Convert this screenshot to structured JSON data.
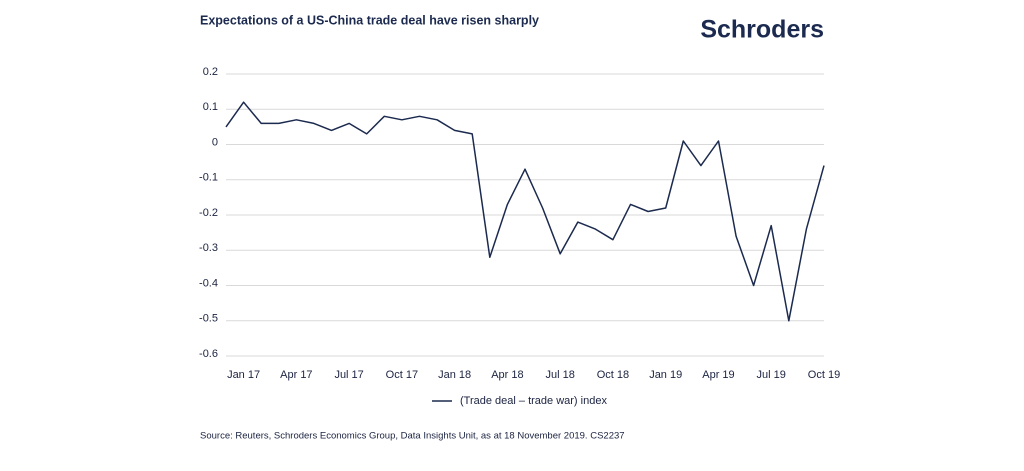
{
  "chart_data": {
    "type": "line",
    "title": "Expectations of a US-China trade deal have risen sharply",
    "brand": "Schroders",
    "source": "Source: Reuters, Schroders Economics Group, Data Insights Unit, as at 18 November 2019. CS2237",
    "categories": [
      null,
      "Jan 17",
      null,
      null,
      "Apr 17",
      null,
      null,
      "Jul 17",
      null,
      null,
      "Oct 17",
      null,
      null,
      "Jan 18",
      null,
      null,
      "Apr 18",
      null,
      null,
      "Jul 18",
      null,
      null,
      "Oct 18",
      null,
      null,
      "Jan 19",
      null,
      null,
      "Apr 19",
      null,
      null,
      "Jul 19",
      null,
      null,
      "Oct 19"
    ],
    "series": [
      {
        "name": "(Trade deal – trade war) index",
        "color": "#1b2a4e",
        "values": [
          0.05,
          0.12,
          0.06,
          0.06,
          0.07,
          0.06,
          0.04,
          0.06,
          0.03,
          0.08,
          0.07,
          0.08,
          0.07,
          0.04,
          0.03,
          -0.32,
          -0.17,
          -0.07,
          -0.18,
          -0.31,
          -0.22,
          -0.24,
          -0.27,
          -0.17,
          -0.19,
          -0.18,
          0.01,
          -0.06,
          0.01,
          -0.26,
          -0.4,
          -0.23,
          -0.5,
          -0.24,
          -0.06
        ]
      }
    ],
    "ylim": [
      -0.6,
      0.2
    ],
    "yticks": [
      0.2,
      0.1,
      0,
      -0.1,
      -0.2,
      -0.3,
      -0.4,
      -0.5,
      -0.6
    ],
    "grid": true
  }
}
